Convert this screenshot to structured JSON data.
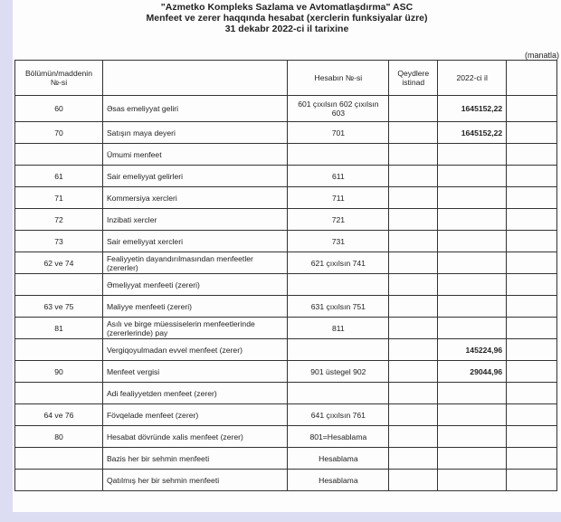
{
  "header": {
    "company": "\"Azmetko Kompleks Sazlama ve Avtomatlaşdırma\" ASC",
    "report": "Menfeet ve zerer haqqında hesabat (xerclerin funksiyalar üzre)",
    "date": "31 dekabr 2022-ci il tarixine",
    "unit": "(manatla)"
  },
  "table": {
    "columns": [
      "Bölümün/maddenin №-si",
      "",
      "Hesabın №-si",
      "Qeydlere istinad",
      "2022-ci il",
      ""
    ],
    "rows": [
      {
        "no": "60",
        "item": "Əsas emeliyyat geliri",
        "account": "601 çıxılsın 602 çıxılsın 603",
        "note": "",
        "value": "1645152,22"
      },
      {
        "no": "70",
        "item": "Satışın maya deyeri",
        "account": "701",
        "note": "",
        "value": "1645152,22"
      },
      {
        "no": "",
        "item": "Ümumi menfeet",
        "account": "",
        "note": "",
        "value": ""
      },
      {
        "no": "61",
        "item": "Sair emeliyyat gelirleri",
        "account": "611",
        "note": "",
        "value": ""
      },
      {
        "no": "71",
        "item": "Kommersiya xercleri",
        "account": "711",
        "note": "",
        "value": ""
      },
      {
        "no": "72",
        "item": "Inzibati xercler",
        "account": "721",
        "note": "",
        "value": ""
      },
      {
        "no": "73",
        "item": "Sair emeliyyat xercleri",
        "account": "731",
        "note": "",
        "value": ""
      },
      {
        "no": "62 ve 74",
        "item": "Fealiyyetin dayandırılmasından menfeetler (zererler)",
        "account": "621 çıxılsın 741",
        "note": "",
        "value": ""
      },
      {
        "no": "",
        "item": "Əmeliyyat menfeeti (zereri)",
        "account": "",
        "note": "",
        "value": ""
      },
      {
        "no": "63 ve 75",
        "item": "Maliyye menfeeti (zereri)",
        "account": "631 çıxılsın 751",
        "note": "",
        "value": ""
      },
      {
        "no": "81",
        "item": "Asılı ve birge müessiselerin menfeetlerinde (zererlerinde) pay",
        "account": "811",
        "note": "",
        "value": ""
      },
      {
        "no": "",
        "item": "Vergiqoyulmadan evvel menfeet (zerer)",
        "account": "",
        "note": "",
        "value": "145224,96"
      },
      {
        "no": "90",
        "item": "Menfeet vergisi",
        "account": "901 üstegel 902",
        "note": "",
        "value": "29044,96"
      },
      {
        "no": "",
        "item": "Adi fealiyyetden menfeet (zerer)",
        "account": "",
        "note": "",
        "value": ""
      },
      {
        "no": "64 ve 76",
        "item": "Fövqelade menfeet (zerer)",
        "account": "641 çıxılsın 761",
        "note": "",
        "value": ""
      },
      {
        "no": "80",
        "item": "Hesabat dövründe xalis menfeet (zerer)",
        "account": "801=Hesablama",
        "note": "",
        "value": ""
      },
      {
        "no": "",
        "item": "Bazis her bir sehmin menfeeti",
        "account": "Hesablama",
        "note": "",
        "value": ""
      },
      {
        "no": "",
        "item": "Qatılmış her bir sehmin menfeeti",
        "account": "Hesablama",
        "note": "",
        "value": ""
      }
    ]
  }
}
